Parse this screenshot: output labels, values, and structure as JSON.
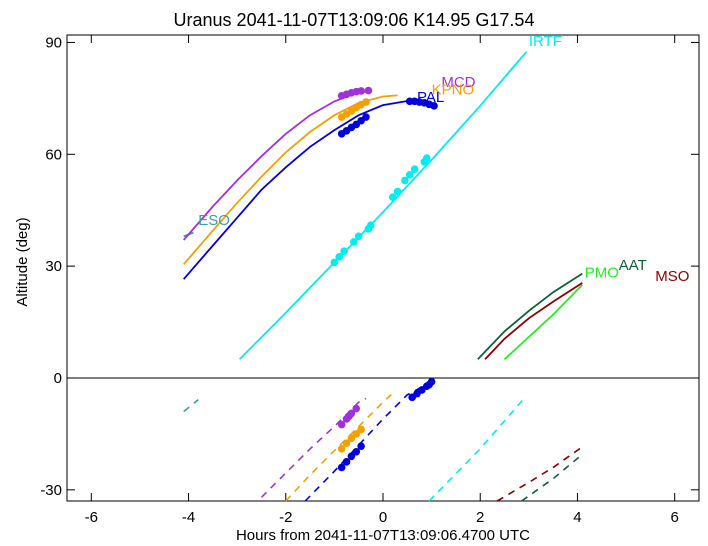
{
  "chart_data": {
    "type": "line",
    "title": "Uranus 2041-11-07T13:09:06  K14.95  G17.54",
    "xlabel": "Hours from 2041-11-07T13:09:06.4700 UTC",
    "ylabel": "Altitude (deg)",
    "xlim": [
      -6.5,
      6.5
    ],
    "ylim": [
      -33,
      92
    ],
    "xticks": [
      -6,
      -4,
      -2,
      0,
      2,
      4,
      6
    ],
    "yticks": [
      -30,
      0,
      30,
      60,
      90
    ],
    "zero_line": true,
    "grid": false,
    "legend": "labels placed at curve ends",
    "series": [
      {
        "name": "ESO",
        "color": "#3a9f9f",
        "label_at": [
          -3.8,
          41
        ],
        "above": [
          [
            -4.1,
            38.0
          ],
          [
            -3.9,
            39.0
          ]
        ],
        "below": [
          [
            -4.1,
            -9.0
          ],
          [
            -3.8,
            -5.8
          ]
        ],
        "points": []
      },
      {
        "name": "MCD",
        "color": "#a030e0",
        "label_at": [
          1.2,
          78
        ],
        "above": [
          [
            -4.1,
            37.0
          ],
          [
            -3.5,
            46.0
          ],
          [
            -3.0,
            53.0
          ],
          [
            -2.5,
            59.5
          ],
          [
            -2.0,
            65.5
          ],
          [
            -1.5,
            70.5
          ],
          [
            -1.0,
            74.2
          ],
          [
            -0.6,
            76.2
          ],
          [
            -0.3,
            77.0
          ]
        ],
        "below": [
          [
            -2.5,
            -32.0
          ],
          [
            -2.0,
            -25.5
          ],
          [
            -1.5,
            -19.0
          ],
          [
            -1.0,
            -13.0
          ],
          [
            -0.5,
            -6.5
          ],
          [
            -0.35,
            -5.5
          ]
        ],
        "points": [
          [
            -0.85,
            75.7
          ],
          [
            -0.75,
            76.1
          ],
          [
            -0.65,
            76.5
          ],
          [
            -0.55,
            76.8
          ],
          [
            -0.45,
            77.0
          ],
          [
            -0.3,
            77.1
          ],
          [
            -0.85,
            -12.5
          ],
          [
            -0.75,
            -11.0
          ],
          [
            -0.7,
            -10.3
          ],
          [
            -0.65,
            -9.5
          ],
          [
            -0.55,
            -8.2
          ]
        ]
      },
      {
        "name": "KPNO",
        "color": "#f5a000",
        "label_at": [
          1.0,
          76
        ],
        "above": [
          [
            -4.1,
            30.5
          ],
          [
            -3.5,
            39.5
          ],
          [
            -3.0,
            47.0
          ],
          [
            -2.5,
            54.0
          ],
          [
            -2.0,
            60.5
          ],
          [
            -1.5,
            66.0
          ],
          [
            -1.0,
            70.5
          ],
          [
            -0.5,
            73.8
          ],
          [
            0.0,
            75.5
          ],
          [
            0.3,
            75.8
          ]
        ],
        "below": [
          [
            -2.0,
            -33.0
          ],
          [
            -1.5,
            -26.0
          ],
          [
            -1.0,
            -19.5
          ],
          [
            -0.5,
            -13.0
          ],
          [
            0.0,
            -6.5
          ],
          [
            0.25,
            -3.5
          ]
        ],
        "points": [
          [
            -0.85,
            70.0
          ],
          [
            -0.75,
            70.8
          ],
          [
            -0.65,
            71.6
          ],
          [
            -0.55,
            72.5
          ],
          [
            -0.45,
            73.3
          ],
          [
            -0.35,
            74.0
          ],
          [
            -0.85,
            -19.0
          ],
          [
            -0.75,
            -17.5
          ],
          [
            -0.65,
            -16.2
          ],
          [
            -0.55,
            -15.0
          ],
          [
            -0.45,
            -13.8
          ]
        ]
      },
      {
        "name": "PAL",
        "color": "#0000dd",
        "label_at": [
          0.7,
          74
        ],
        "above": [
          [
            -4.1,
            26.5
          ],
          [
            -3.5,
            35.5
          ],
          [
            -3.0,
            43.0
          ],
          [
            -2.5,
            50.5
          ],
          [
            -2.0,
            56.5
          ],
          [
            -1.5,
            62.0
          ],
          [
            -1.0,
            66.5
          ],
          [
            -0.5,
            70.5
          ],
          [
            0.0,
            73.2
          ],
          [
            0.5,
            74.3
          ],
          [
            1.0,
            73.0
          ]
        ],
        "below": [
          [
            -1.6,
            -33.0
          ],
          [
            -1.0,
            -25.0
          ],
          [
            -0.5,
            -18.0
          ],
          [
            0.0,
            -11.0
          ],
          [
            0.5,
            -4.5
          ],
          [
            1.0,
            -1.0
          ]
        ],
        "points": [
          [
            -0.85,
            65.5
          ],
          [
            -0.75,
            66.3
          ],
          [
            -0.65,
            67.2
          ],
          [
            -0.55,
            68.0
          ],
          [
            -0.45,
            69.0
          ],
          [
            -0.35,
            70.0
          ],
          [
            0.55,
            74.2
          ],
          [
            0.65,
            74.2
          ],
          [
            0.75,
            74.0
          ],
          [
            0.85,
            73.8
          ],
          [
            0.95,
            73.4
          ],
          [
            1.05,
            73.0
          ],
          [
            -0.85,
            -24.0
          ],
          [
            -0.75,
            -22.5
          ],
          [
            -0.65,
            -21.0
          ],
          [
            -0.55,
            -19.8
          ],
          [
            -0.45,
            -18.3
          ],
          [
            0.6,
            -5.2
          ],
          [
            0.7,
            -4.2
          ],
          [
            0.8,
            -3.2
          ],
          [
            0.9,
            -2.2
          ],
          [
            0.95,
            -1.8
          ],
          [
            1.0,
            -1.0
          ]
        ]
      },
      {
        "name": "IRTF",
        "color": "#00eeee",
        "label_at": [
          3.0,
          89
        ],
        "above": [
          [
            -2.95,
            5.0
          ],
          [
            -2.0,
            17.5
          ],
          [
            -1.0,
            31.0
          ],
          [
            0.0,
            44.5
          ],
          [
            1.0,
            58.5
          ],
          [
            2.0,
            73.0
          ],
          [
            2.95,
            87.5
          ]
        ],
        "below": [
          [
            0.95,
            -33.0
          ],
          [
            2.0,
            -19.0
          ],
          [
            2.9,
            -5.5
          ]
        ],
        "points": [
          [
            -1.0,
            31.0
          ],
          [
            -0.9,
            32.5
          ],
          [
            -0.8,
            34.0
          ],
          [
            -0.6,
            36.5
          ],
          [
            -0.5,
            38.0
          ],
          [
            -0.3,
            40.0
          ],
          [
            -0.25,
            41.0
          ],
          [
            0.2,
            48.5
          ],
          [
            0.3,
            50.0
          ],
          [
            0.45,
            53.0
          ],
          [
            0.55,
            54.5
          ],
          [
            0.65,
            56.0
          ],
          [
            0.85,
            58.0
          ],
          [
            0.9,
            59.0
          ]
        ]
      },
      {
        "name": "PMO",
        "color": "#22ee22",
        "label_at": [
          4.15,
          27
        ],
        "above": [
          [
            2.5,
            5.0
          ],
          [
            3.0,
            11.0
          ],
          [
            3.5,
            17.0
          ],
          [
            4.1,
            25.0
          ]
        ],
        "below": [],
        "points": []
      },
      {
        "name": "AAT",
        "color": "#0f5f3a",
        "label_at": [
          4.85,
          29
        ],
        "above": [
          [
            1.95,
            5.0
          ],
          [
            2.5,
            12.5
          ],
          [
            3.0,
            18.0
          ],
          [
            3.5,
            23.0
          ],
          [
            4.1,
            28.0
          ]
        ],
        "below": [
          [
            2.85,
            -33.0
          ],
          [
            3.5,
            -27.0
          ],
          [
            4.1,
            -20.5
          ]
        ],
        "points": []
      },
      {
        "name": "MSO",
        "color": "#8b0000",
        "label_at": [
          5.6,
          26
        ],
        "above": [
          [
            2.1,
            5.0
          ],
          [
            2.5,
            10.5
          ],
          [
            3.0,
            16.0
          ],
          [
            3.5,
            20.5
          ],
          [
            4.1,
            25.5
          ]
        ],
        "below": [
          [
            2.35,
            -33.0
          ],
          [
            3.0,
            -28.0
          ],
          [
            3.5,
            -24.0
          ],
          [
            4.1,
            -18.5
          ]
        ],
        "points": []
      }
    ]
  }
}
